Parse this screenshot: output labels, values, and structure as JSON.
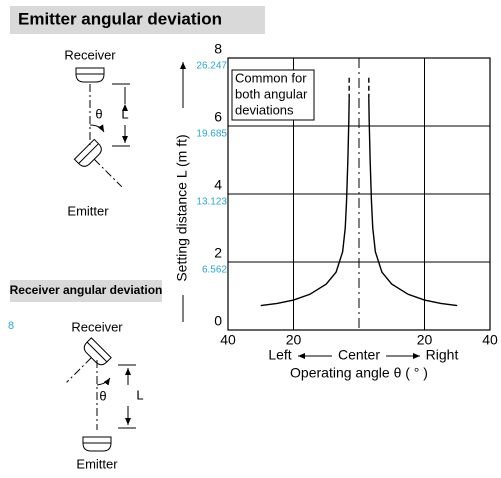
{
  "header": {
    "title": "Emitter angular deviation"
  },
  "diagram_top": {
    "receiver": "Receiver",
    "emitter": "Emitter",
    "theta": "θ",
    "length": "L"
  },
  "subheader": "Receiver angular deviation",
  "diagram_bottom": {
    "receiver": "Receiver",
    "emitter": "Emitter",
    "theta": "θ",
    "length": "L"
  },
  "margin_note": "8",
  "chart_data": {
    "type": "line",
    "ylabel": "Setting distance L (m ft)",
    "xlabel": "Operating angle θ ( ° )",
    "direction_labels": {
      "left": "Left",
      "center": "Center",
      "right": "Right"
    },
    "annotation": [
      "Common for",
      "both angular",
      "deviations"
    ],
    "xlim": [
      -40,
      40
    ],
    "xticks": [
      {
        "value": -40,
        "label": "40"
      },
      {
        "value": -20,
        "label": "20"
      },
      {
        "value": 20,
        "label": "20"
      },
      {
        "value": 40,
        "label": "40"
      }
    ],
    "ylim": [
      0,
      8
    ],
    "yticks": [
      0,
      2,
      4,
      6,
      8
    ],
    "y2lim": [
      0,
      26.247
    ],
    "y2ticks": [
      6.562,
      13.123,
      19.685,
      26.247
    ],
    "y2color": "#29a8d8",
    "grid": true,
    "series": [
      {
        "color": "#000000",
        "dashed": false,
        "x": [
          -30,
          -25,
          -20,
          -15,
          -10,
          -7,
          -5,
          -4.2,
          -3.8,
          -3.4,
          -3.1,
          -3
        ],
        "values": [
          0.72,
          0.78,
          0.88,
          1.05,
          1.35,
          1.7,
          2.3,
          3.0,
          3.8,
          5.0,
          6.2,
          6.8
        ]
      },
      {
        "color": "#000000",
        "dashed": true,
        "x": [
          -3,
          -3
        ],
        "values": [
          6.8,
          7.5
        ]
      },
      {
        "color": "#000000",
        "dashed": false,
        "x": [
          3,
          3.1,
          3.4,
          3.8,
          4.2,
          5,
          7,
          10,
          15,
          20,
          25,
          30
        ],
        "values": [
          6.8,
          6.2,
          5.0,
          3.8,
          3.0,
          2.3,
          1.7,
          1.35,
          1.05,
          0.88,
          0.78,
          0.72
        ]
      },
      {
        "color": "#000000",
        "dashed": true,
        "x": [
          3,
          3
        ],
        "values": [
          6.8,
          7.5
        ]
      }
    ]
  }
}
